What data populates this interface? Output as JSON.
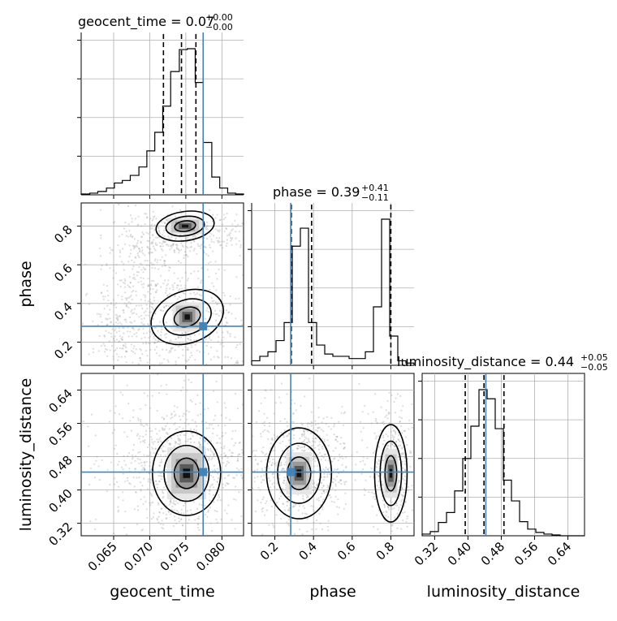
{
  "chart_data": {
    "type": "corner",
    "parameters": [
      "geocent_time",
      "phase",
      "luminosity_distance"
    ],
    "truth": {
      "geocent_time": 0.0774,
      "phase": 0.282,
      "luminosity_distance": 0.443
    },
    "titles": [
      {
        "name": "geocent_time",
        "median": "0.07",
        "plus": "+0.00",
        "minus": "−0.00"
      },
      {
        "name": "phase",
        "median": "0.39",
        "plus": "+0.41",
        "minus": "−0.11"
      },
      {
        "name": "luminosity_distance",
        "median": "0.44",
        "plus": "+0.05",
        "minus": "−0.05"
      }
    ],
    "axes": {
      "geocent_time": {
        "range": [
          0.0605,
          0.083
        ],
        "ticks": [
          0.065,
          0.07,
          0.075,
          0.08
        ],
        "tick_labels": [
          "0.065",
          "0.070",
          "0.075",
          "0.080"
        ]
      },
      "phase": {
        "range": [
          0.08,
          0.92
        ],
        "ticks": [
          0.2,
          0.4,
          0.6,
          0.8
        ],
        "tick_labels": [
          "0.2",
          "0.4",
          "0.6",
          "0.8"
        ]
      },
      "luminosity_distance": {
        "range": [
          0.29,
          0.68
        ],
        "ticks": [
          0.32,
          0.4,
          0.48,
          0.56,
          0.64
        ],
        "tick_labels": [
          "0.32",
          "0.40",
          "0.48",
          "0.56",
          "0.64"
        ]
      }
    },
    "histograms": {
      "geocent_time": {
        "edges": [
          0.0605,
          0.0617,
          0.0628,
          0.064,
          0.0651,
          0.0662,
          0.0673,
          0.0685,
          0.0696,
          0.0707,
          0.0718,
          0.0729,
          0.0741,
          0.0752,
          0.0763,
          0.0774,
          0.0786,
          0.0797,
          0.0808,
          0.0819,
          0.083
        ],
        "counts": [
          1,
          2,
          4,
          8,
          14,
          17,
          23,
          33,
          52,
          74,
          105,
          146,
          172,
          173,
          133,
          62,
          21,
          8,
          2,
          1
        ],
        "quantiles": [
          0.0719,
          0.0744,
          0.0764
        ]
      },
      "phase": {
        "edges": [
          0.08,
          0.122,
          0.164,
          0.206,
          0.248,
          0.29,
          0.332,
          0.374,
          0.416,
          0.458,
          0.5,
          0.542,
          0.584,
          0.626,
          0.668,
          0.71,
          0.752,
          0.794,
          0.836,
          0.878,
          0.92
        ],
        "counts": [
          2,
          4,
          6,
          11,
          19,
          53,
          61,
          19,
          9,
          5,
          4,
          4,
          3,
          3,
          6,
          26,
          65,
          13,
          2,
          1
        ],
        "quantiles": [
          0.285,
          0.39,
          0.8
        ]
      },
      "luminosity_distance": {
        "edges": [
          0.29,
          0.3095,
          0.329,
          0.3485,
          0.368,
          0.3875,
          0.407,
          0.4265,
          0.446,
          0.4655,
          0.485,
          0.5045,
          0.524,
          0.5435,
          0.563,
          0.5825,
          0.602,
          0.6215,
          0.641,
          0.6605,
          0.68
        ],
        "counts": [
          2,
          5,
          16,
          28,
          54,
          93,
          132,
          176,
          165,
          129,
          67,
          42,
          17,
          8,
          4,
          2,
          1,
          0,
          0,
          0
        ],
        "quantiles": [
          0.3935,
          0.4385,
          0.4865
        ]
      }
    },
    "modes": {
      "geocent_time_phase": [
        [
          0.0752,
          0.33
        ],
        [
          0.0749,
          0.8
        ]
      ],
      "geocent_time_luminosity_distance": [
        [
          0.0751,
          0.44
        ]
      ],
      "phase_luminosity_distance": [
        [
          0.325,
          0.44
        ],
        [
          0.8,
          0.44
        ]
      ]
    }
  }
}
